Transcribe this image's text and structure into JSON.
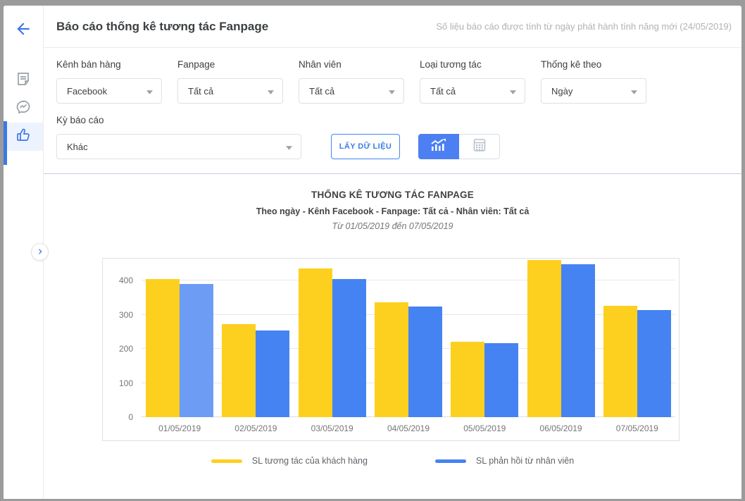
{
  "header": {
    "title": "Báo cáo thống kê tương tác Fanpage",
    "note": "Số liệu báo cáo được tính từ ngày phát hành tính năng mới (24/05/2019)"
  },
  "sidebar": {
    "icons": [
      "back-arrow",
      "report-note",
      "messenger",
      "thumb-up-like"
    ],
    "active_icon": "thumb-up-like",
    "accent_color": "#3b78e7"
  },
  "filters": {
    "fields": [
      {
        "label": "Kênh bán hàng",
        "value": "Facebook"
      },
      {
        "label": "Fanpage",
        "value": "Tất cả"
      },
      {
        "label": "Nhân viên",
        "value": "Tất cả"
      },
      {
        "label": "Loại tương tác",
        "value": "Tất cả"
      },
      {
        "label": "Thống kê theo",
        "value": "Ngày"
      }
    ],
    "period": {
      "label": "Kỳ báo cáo",
      "value": "Khác"
    },
    "get_data_label": "LẤY DỮ LIỆU"
  },
  "chart_data": {
    "type": "bar",
    "title": "THỐNG KÊ TƯƠNG TÁC FANPAGE",
    "subtitle": "Theo ngày - Kênh Facebook - Fanpage: Tất cả - Nhân viên: Tất cả",
    "date_range": "Từ 01/05/2019 đến 07/05/2019",
    "categories": [
      "01/05/2019",
      "02/05/2019",
      "03/05/2019",
      "04/05/2019",
      "05/05/2019",
      "06/05/2019",
      "07/05/2019"
    ],
    "series": [
      {
        "name": "SL tương tác của khách hàng",
        "color": "#fdd020",
        "values": [
          405,
          273,
          437,
          337,
          222,
          460,
          326
        ]
      },
      {
        "name": "SL phản hồi từ nhân viên",
        "color": "#4583f2",
        "highlight_index": 0,
        "highlight_color": "#6d9cf5",
        "values": [
          390,
          255,
          405,
          324,
          216,
          448,
          315
        ]
      }
    ],
    "y_ticks": [
      0,
      100,
      200,
      300,
      400
    ],
    "y_max": 465,
    "grid": true,
    "legend_position": "bottom"
  }
}
